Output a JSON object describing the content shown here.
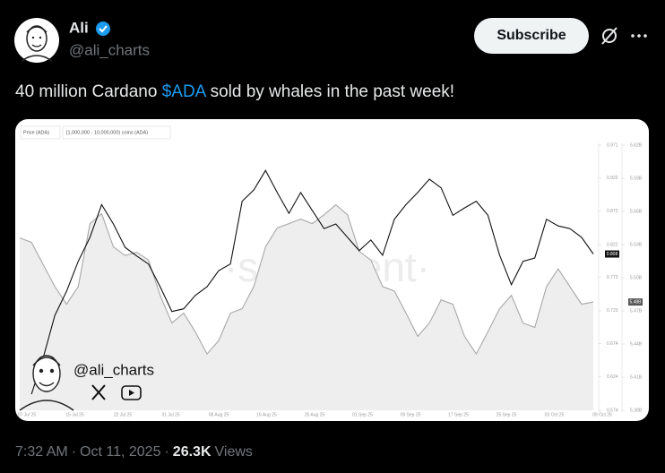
{
  "tweet": {
    "author": {
      "name": "Ali",
      "handle": "@ali_charts"
    },
    "subscribe": "Subscribe",
    "text": [
      "40 million Cardano ",
      "$ADA",
      " sold by whales in the past week!"
    ],
    "footer": {
      "time": "7:32 AM",
      "separator": "·",
      "date": "Oct 11, 2025",
      "views": "26.3K",
      "views_label": "Views"
    }
  },
  "chart_data": {
    "type": "line",
    "watermark": "·santiment·",
    "overlay_handle": "@ali_charts",
    "date_labels": [
      "07 Jul 25",
      "15 Jul 25",
      "22 Jul 25",
      "31 Jul 25",
      "08 Aug 25",
      "16 Aug 25",
      "26 Aug 25",
      "01 Sep 25",
      "09 Sep 25",
      "17 Sep 25",
      "25 Sep 25",
      "03 Oct 25",
      "09 Oct 25"
    ],
    "series": [
      {
        "name": "Price (ADA)",
        "color": "#111111",
        "current_label": "0.808",
        "values": [
          null,
          0.598,
          0.652,
          0.716,
          0.752,
          0.797,
          0.833,
          0.882,
          0.853,
          0.818,
          0.805,
          0.793,
          0.759,
          0.722,
          0.726,
          0.746,
          0.759,
          0.783,
          0.793,
          0.887,
          0.904,
          0.933,
          0.9,
          0.869,
          0.9,
          0.873,
          0.846,
          0.853,
          0.833,
          0.813,
          0.829,
          0.806,
          0.86,
          0.882,
          0.9,
          0.92,
          0.907,
          0.866,
          0.877,
          0.887,
          0.866,
          0.806,
          0.762,
          0.797,
          0.802,
          0.86,
          0.85,
          0.846,
          0.833,
          0.808
        ]
      },
      {
        "name": "[1,000,000 - 10,000,000) coins (ADA)",
        "color": "#a8a8a8",
        "fill": "#eeeeee",
        "axis": "y2",
        "current_label": "5.48B",
        "values": [
          5.536,
          5.532,
          5.512,
          5.492,
          5.476,
          5.492,
          5.549,
          5.558,
          5.528,
          5.52,
          5.523,
          5.516,
          5.484,
          5.459,
          5.468,
          5.451,
          5.431,
          5.443,
          5.468,
          5.472,
          5.492,
          5.528,
          5.545,
          5.549,
          5.553,
          5.549,
          5.557,
          5.566,
          5.557,
          5.524,
          5.516,
          5.492,
          5.488,
          5.468,
          5.447,
          5.459,
          5.48,
          5.476,
          5.447,
          5.431,
          5.451,
          5.472,
          5.484,
          5.459,
          5.455,
          5.492,
          5.508,
          5.492,
          5.476,
          5.478
        ]
      }
    ],
    "ylim": [
      0.574,
      0.971
    ],
    "yticks": [
      0.971,
      0.922,
      0.872,
      0.822,
      0.773,
      0.723,
      0.674,
      0.624,
      0.574
    ],
    "y2lim": [
      5.38,
      5.62
    ],
    "y2ticks": [
      {
        "value": 5.62,
        "label": "5.62B"
      },
      {
        "value": 5.59,
        "label": "5.59B"
      },
      {
        "value": 5.56,
        "label": "5.56B"
      },
      {
        "value": 5.53,
        "label": "5.53B"
      },
      {
        "value": 5.5,
        "label": "5.50B"
      },
      {
        "value": 5.47,
        "label": "5.47B"
      },
      {
        "value": 5.44,
        "label": "5.44B"
      },
      {
        "value": 5.41,
        "label": "5.41B"
      },
      {
        "value": 5.38,
        "label": "5.38B"
      }
    ]
  }
}
